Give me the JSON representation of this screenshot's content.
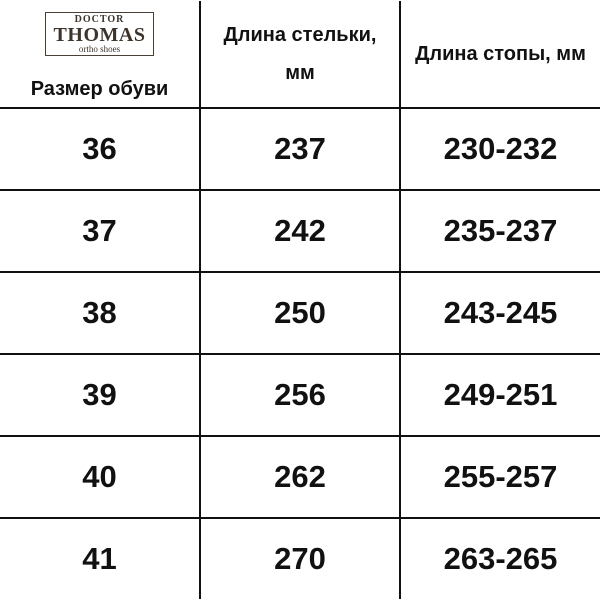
{
  "header": {
    "logo": {
      "top": "DOCTOR",
      "name": "THOMAS",
      "tagline": "ortho shoes"
    },
    "columns": [
      "Размер обуви",
      "Длина стельки, мм",
      "Длина стопы, мм"
    ]
  },
  "table": {
    "rows": [
      [
        "36",
        "237",
        "230-232"
      ],
      [
        "37",
        "242",
        "235-237"
      ],
      [
        "38",
        "250",
        "243-245"
      ],
      [
        "39",
        "256",
        "249-251"
      ],
      [
        "40",
        "262",
        "255-257"
      ],
      [
        "41",
        "270",
        "263-265"
      ]
    ]
  }
}
